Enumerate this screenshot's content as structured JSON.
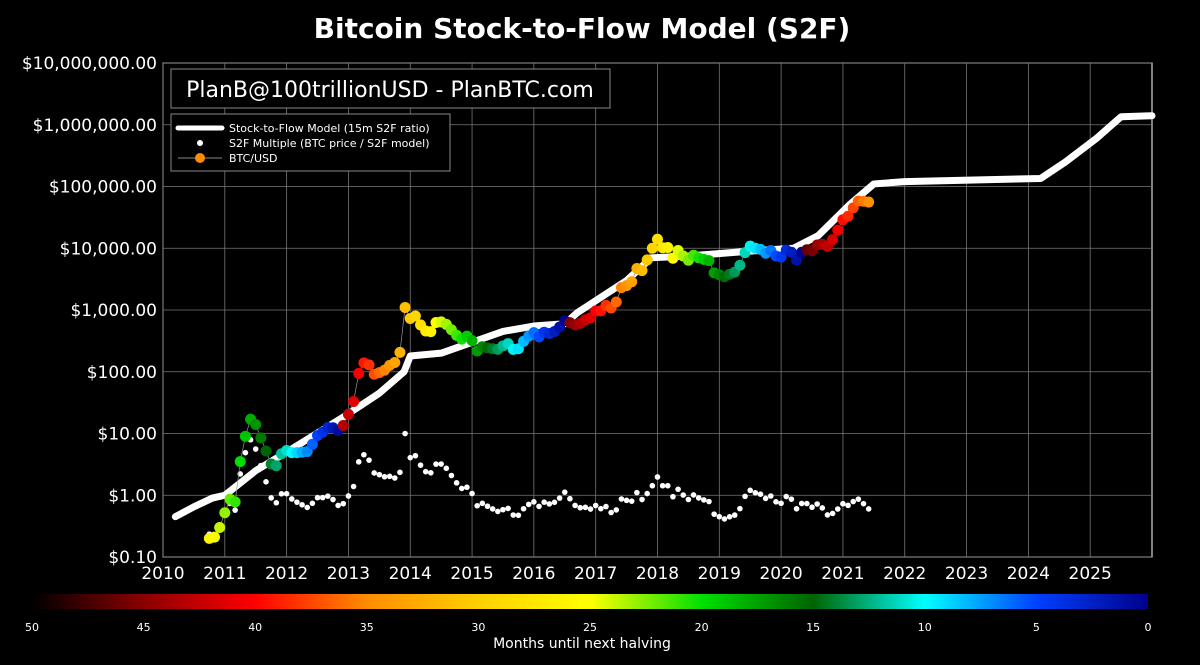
{
  "chart_data": {
    "type": "scatter",
    "title": "Bitcoin Stock-to-Flow Model (S2F)",
    "watermark": "PlanB@100trillionUSD - PlanBTC.com",
    "ylabel": "",
    "xlabel": "",
    "yscale": "log",
    "ylim": [
      0.1,
      10000000
    ],
    "xlim": [
      2010,
      2026
    ],
    "grid": true,
    "legend_position": "top-left",
    "y_tick_labels": [
      "$0.10",
      "$1.00",
      "$10.00",
      "$100.00",
      "$1,000.00",
      "$10,000.00",
      "$100,000.00",
      "$1,000,000.00",
      "$10,000,000.00"
    ],
    "x_tick_labels": [
      "2010",
      "2011",
      "2012",
      "2013",
      "2014",
      "2015",
      "2016",
      "2017",
      "2018",
      "2019",
      "2020",
      "2021",
      "2022",
      "2023",
      "2024",
      "2025"
    ],
    "legend": [
      "Stock-to-Flow Model (15m S2F ratio)",
      "S2F Multiple (BTC price / S2F model)",
      "BTC/USD"
    ],
    "btc_start": 2010.75,
    "btc_step_years": 0.08333,
    "btc_prices": [
      0.2,
      0.21,
      0.3,
      0.52,
      0.86,
      0.78,
      3.5,
      9,
      17,
      14,
      8.5,
      5.2,
      3.2,
      3.0,
      4.7,
      5.3,
      4.9,
      4.9,
      5,
      5.1,
      6.7,
      9.3,
      10.5,
      12.5,
      12.4,
      11.2,
      13.5,
      20.4,
      33,
      94,
      139,
      129,
      91,
      97,
      106,
      127,
      141,
      206,
      1100,
      730,
      800,
      573,
      457,
      446,
      628,
      641,
      584,
      478,
      389,
      338,
      378,
      320,
      217,
      254,
      244,
      236,
      230,
      263,
      285,
      230,
      236,
      311,
      378,
      430,
      368,
      437,
      416,
      448,
      531,
      673,
      624,
      575,
      609,
      700,
      745,
      963,
      970,
      1190,
      1080,
      1350,
      2300,
      2480,
      2870,
      4700,
      4340,
      6470,
      10000,
      14000,
      10200,
      10300,
      6900,
      9200,
      7500,
      6400,
      7700,
      7000,
      6600,
      6300,
      4000,
      3700,
      3450,
      3800,
      4100,
      5300,
      8500,
      10800,
      10000,
      9600,
      8300,
      9200,
      7500,
      7200,
      9350,
      8600,
      6400,
      8600,
      9450,
      9100,
      11300,
      11600,
      10800,
      13800,
      19700,
      29000,
      33000,
      45000,
      58000,
      57800,
      56000
    ],
    "model": [
      [
        2010.2,
        0.45
      ],
      [
        2010.5,
        0.65
      ],
      [
        2010.8,
        0.9
      ],
      [
        2011.0,
        1.0
      ],
      [
        2011.5,
        2.5
      ],
      [
        2012.0,
        5
      ],
      [
        2012.9,
        18
      ],
      [
        2013.5,
        45
      ],
      [
        2013.9,
        100
      ],
      [
        2014.0,
        180
      ],
      [
        2014.5,
        200
      ],
      [
        2015.0,
        300
      ],
      [
        2015.5,
        450
      ],
      [
        2016.0,
        550
      ],
      [
        2016.5,
        600
      ],
      [
        2016.7,
        900
      ],
      [
        2017.5,
        3000
      ],
      [
        2017.9,
        7000
      ],
      [
        2018.5,
        7500
      ],
      [
        2019.5,
        9000
      ],
      [
        2020.2,
        10000
      ],
      [
        2020.6,
        16000
      ],
      [
        2021.1,
        50000
      ],
      [
        2021.5,
        110000
      ],
      [
        2022.0,
        120000
      ],
      [
        2024.2,
        135000
      ],
      [
        2024.6,
        250000
      ],
      [
        2025.1,
        600000
      ],
      [
        2025.5,
        1350000
      ],
      [
        2026.0,
        1400000
      ]
    ],
    "halvings": [
      2012.91,
      2016.52,
      2020.36,
      2024.3
    ],
    "colorbar": {
      "label": "Months until next halving",
      "range": [
        50,
        0
      ],
      "tick_labels": [
        "50",
        "45",
        "40",
        "35",
        "30",
        "25",
        "20",
        "15",
        "10",
        "5",
        "0"
      ],
      "stops": [
        [
          50,
          "#000000"
        ],
        [
          45,
          "#8b0000"
        ],
        [
          40,
          "#ff0000"
        ],
        [
          35,
          "#ff8c00"
        ],
        [
          30,
          "#ffd000"
        ],
        [
          25,
          "#ffff00"
        ],
        [
          20,
          "#00e000"
        ],
        [
          15,
          "#006400"
        ],
        [
          10,
          "#00ffff"
        ],
        [
          5,
          "#0040ff"
        ],
        [
          0,
          "#00008b"
        ]
      ]
    }
  }
}
